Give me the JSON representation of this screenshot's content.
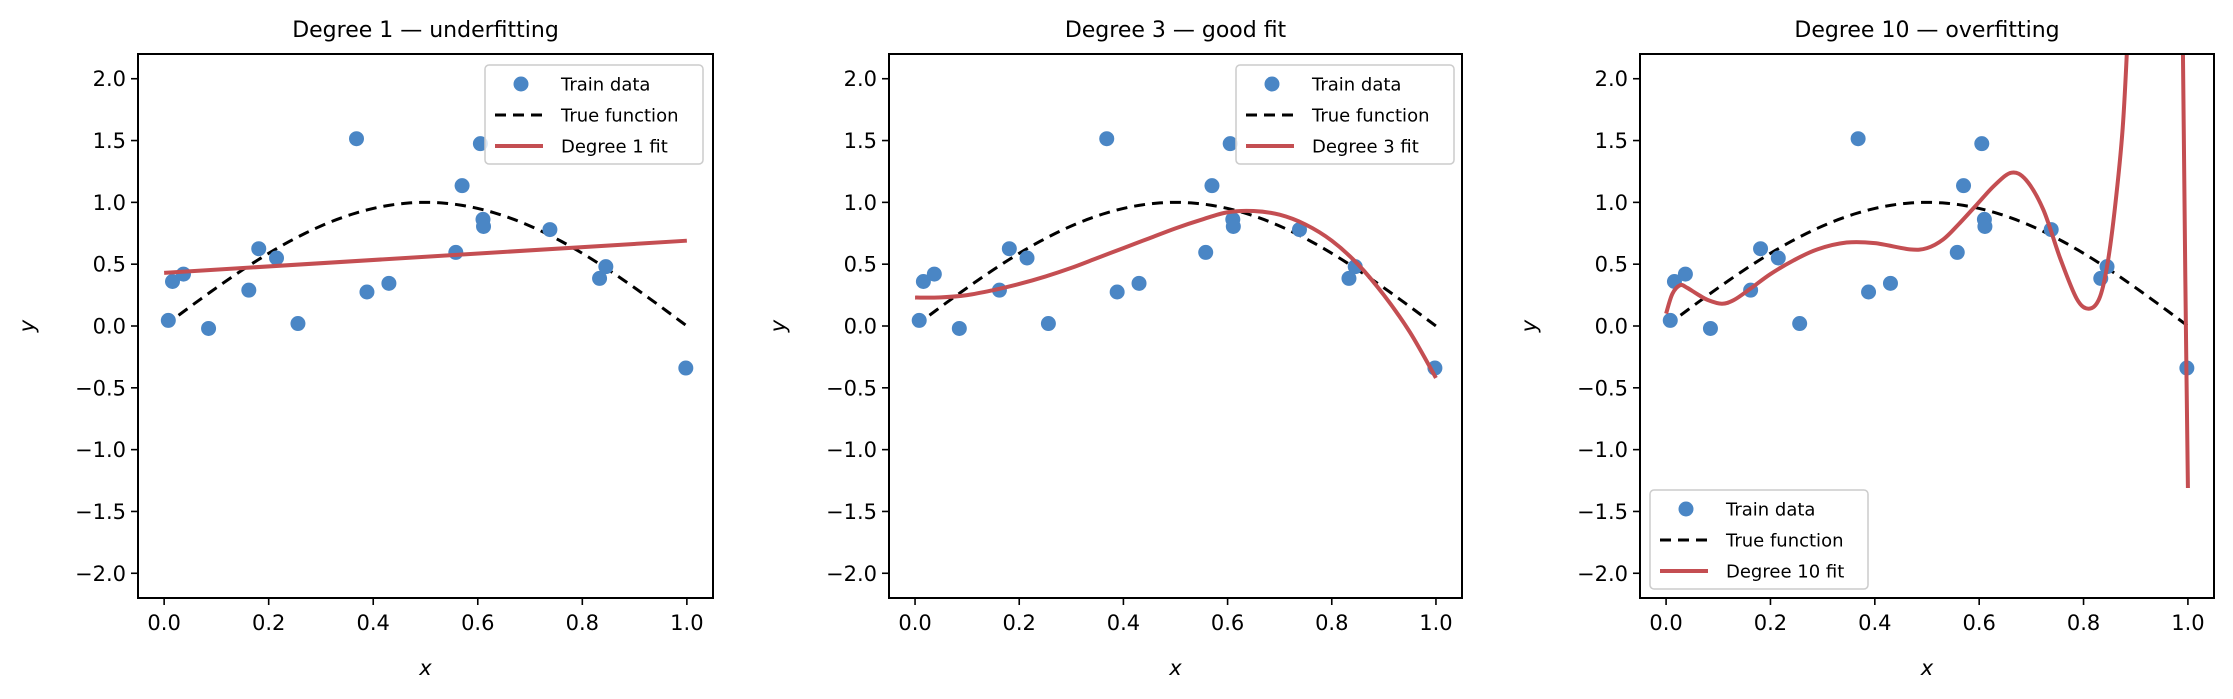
{
  "colors": {
    "train": "#4a86c5",
    "true_fn": "#000000",
    "fit": "#c44e52",
    "legend_border": "#cccccc"
  },
  "chart_data": [
    {
      "type": "scatter+line",
      "title": "Degree 1 — underfitting",
      "xlabel": "x",
      "ylabel": "y",
      "xlim": [
        -0.05,
        1.05
      ],
      "ylim": [
        -2.2,
        2.2
      ],
      "xticks": [
        0.0,
        0.2,
        0.4,
        0.6,
        0.8,
        1.0
      ],
      "xtick_labels": [
        "0.0",
        "0.2",
        "0.4",
        "0.6",
        "0.8",
        "1.0"
      ],
      "yticks": [
        2.0,
        1.5,
        1.0,
        0.5,
        0.0,
        -0.5,
        -1.0,
        -1.5,
        -2.0
      ],
      "ytick_labels": [
        "2.0",
        "1.5",
        "1.0",
        "0.5",
        "0.0",
        "−0.5",
        "−1.0",
        "−1.5",
        "−2.0"
      ],
      "grid": false,
      "legend": {
        "placement": "upper-right",
        "entries": [
          "Train data",
          "True function",
          "Degree 1 fit"
        ]
      },
      "fit_degree": 1,
      "fit_curve": {
        "x": [
          0.0,
          1.0
        ],
        "y": [
          0.43,
          0.69
        ]
      }
    },
    {
      "type": "scatter+line",
      "title": "Degree 3 — good fit",
      "xlabel": "x",
      "ylabel": "y",
      "xlim": [
        -0.05,
        1.05
      ],
      "ylim": [
        -2.2,
        2.2
      ],
      "xticks": [
        0.0,
        0.2,
        0.4,
        0.6,
        0.8,
        1.0
      ],
      "xtick_labels": [
        "0.0",
        "0.2",
        "0.4",
        "0.6",
        "0.8",
        "1.0"
      ],
      "yticks": [
        2.0,
        1.5,
        1.0,
        0.5,
        0.0,
        -0.5,
        -1.0,
        -1.5,
        -2.0
      ],
      "ytick_labels": [
        "2.0",
        "1.5",
        "1.0",
        "0.5",
        "0.0",
        "−0.5",
        "−1.0",
        "−1.5",
        "−2.0"
      ],
      "grid": false,
      "legend": {
        "placement": "upper-right",
        "entries": [
          "Train data",
          "True function",
          "Degree 3 fit"
        ]
      },
      "fit_degree": 3,
      "fit_curve": {
        "x": [
          0.0,
          0.05,
          0.1,
          0.15,
          0.2,
          0.25,
          0.3,
          0.35,
          0.4,
          0.45,
          0.5,
          0.55,
          0.6,
          0.65,
          0.7,
          0.75,
          0.8,
          0.85,
          0.9,
          0.95,
          1.0
        ],
        "y": [
          0.23,
          0.232,
          0.25,
          0.29,
          0.34,
          0.4,
          0.47,
          0.55,
          0.63,
          0.71,
          0.79,
          0.86,
          0.92,
          0.93,
          0.9,
          0.82,
          0.69,
          0.5,
          0.25,
          -0.05,
          -0.42
        ]
      }
    },
    {
      "type": "scatter+line",
      "title": "Degree 10 — overfitting",
      "xlabel": "x",
      "ylabel": "y",
      "xlim": [
        -0.05,
        1.05
      ],
      "ylim": [
        -2.2,
        2.2
      ],
      "xticks": [
        0.0,
        0.2,
        0.4,
        0.6,
        0.8,
        1.0
      ],
      "xtick_labels": [
        "0.0",
        "0.2",
        "0.4",
        "0.6",
        "0.8",
        "1.0"
      ],
      "yticks": [
        2.0,
        1.5,
        1.0,
        0.5,
        0.0,
        -0.5,
        -1.0,
        -1.5,
        -2.0
      ],
      "ytick_labels": [
        "2.0",
        "1.5",
        "1.0",
        "0.5",
        "0.0",
        "−0.5",
        "−1.0",
        "−1.5",
        "−2.0"
      ],
      "grid": false,
      "legend": {
        "placement": "lower-left",
        "entries": [
          "Train data",
          "True function",
          "Degree 10 fit"
        ]
      },
      "fit_degree": 10,
      "fit_curve": {
        "x": [
          0.0,
          0.012,
          0.027,
          0.04,
          0.059,
          0.08,
          0.107,
          0.13,
          0.161,
          0.2,
          0.244,
          0.29,
          0.346,
          0.4,
          0.467,
          0.5,
          0.531,
          0.56,
          0.595,
          0.63,
          0.662,
          0.69,
          0.723,
          0.755,
          0.787,
          0.81,
          0.83,
          0.845,
          0.86,
          0.875,
          0.885,
          0.9,
          0.95,
          0.985,
          0.99,
          0.995,
          1.0
        ],
        "y": [
          0.1,
          0.26,
          0.33,
          0.31,
          0.26,
          0.21,
          0.18,
          0.21,
          0.3,
          0.42,
          0.53,
          0.62,
          0.675,
          0.67,
          0.62,
          0.63,
          0.7,
          0.82,
          0.98,
          1.14,
          1.24,
          1.18,
          0.94,
          0.55,
          0.22,
          0.14,
          0.22,
          0.48,
          0.95,
          1.6,
          2.4,
          4.0,
          8.0,
          4.0,
          2.4,
          0.4,
          -1.31
        ]
      }
    }
  ],
  "train_data": {
    "x": [
      0.008,
      0.016,
      0.037,
      0.085,
      0.162,
      0.181,
      0.215,
      0.256,
      0.368,
      0.388,
      0.43,
      0.558,
      0.57,
      0.605,
      0.61,
      0.611,
      0.738,
      0.833,
      0.845,
      0.998
    ],
    "y": [
      0.045,
      0.36,
      0.42,
      -0.02,
      0.29,
      0.625,
      0.55,
      0.02,
      1.515,
      0.275,
      0.345,
      0.595,
      1.135,
      1.475,
      0.862,
      0.805,
      0.78,
      0.385,
      0.48,
      -0.34
    ]
  },
  "true_function": {
    "label": "sin(πx)",
    "x_range": [
      0.0,
      1.0
    ]
  }
}
